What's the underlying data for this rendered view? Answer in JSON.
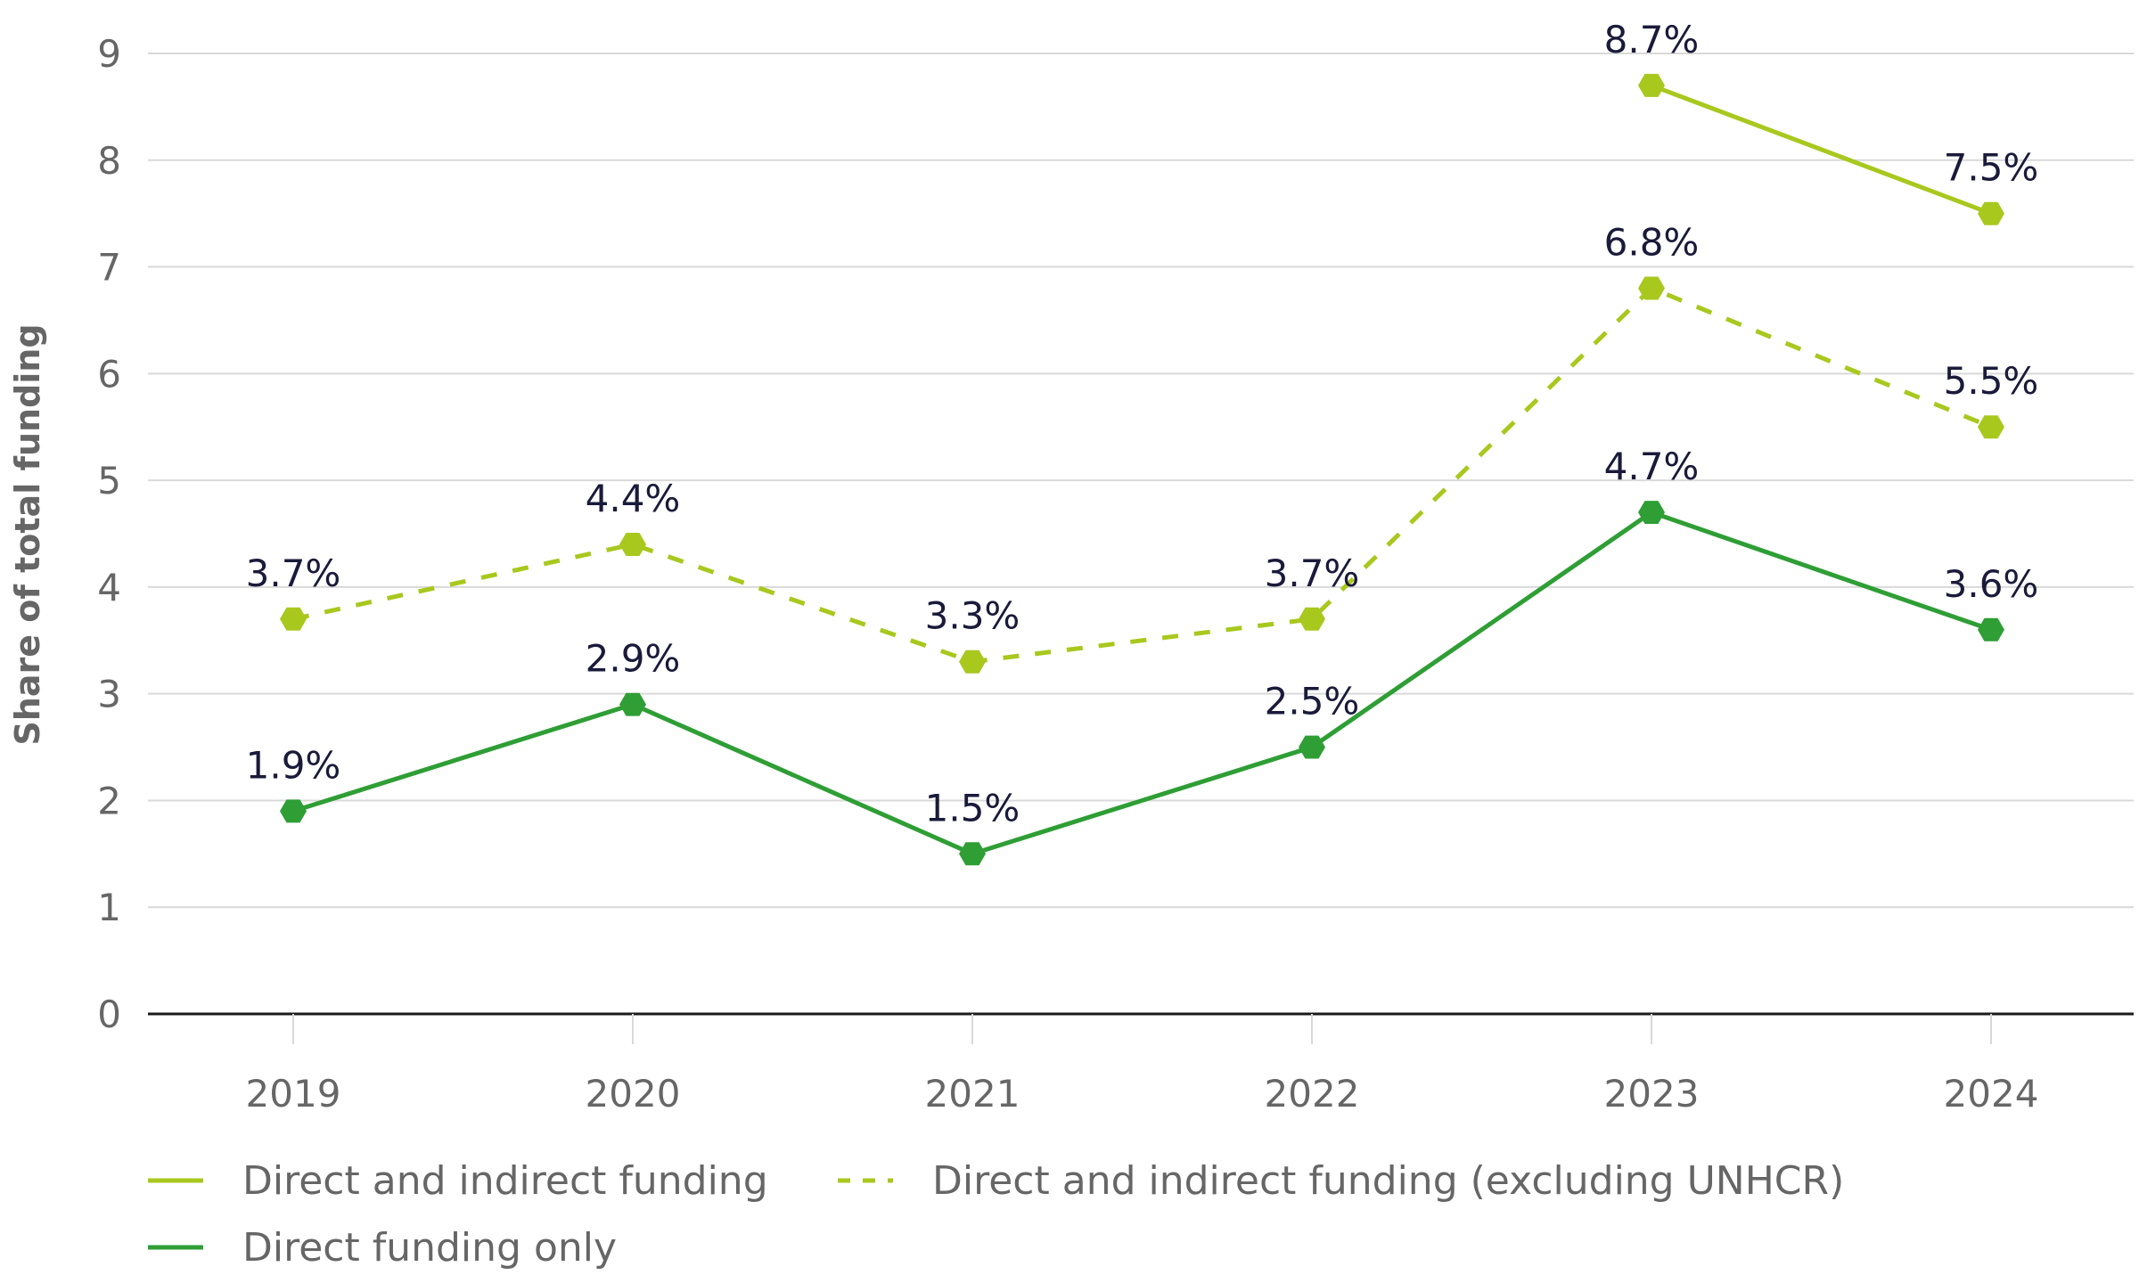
{
  "chart_data": {
    "type": "line",
    "title": "",
    "xlabel": "",
    "ylabel": "Share of total funding",
    "x": [
      "2019",
      "2020",
      "2021",
      "2022",
      "2023",
      "2024"
    ],
    "ylim": [
      0,
      9
    ],
    "yticks": [
      "0",
      "1",
      "2",
      "3",
      "4",
      "5",
      "6",
      "7",
      "8",
      "9"
    ],
    "grid": true,
    "legend_position": "bottom",
    "series": [
      {
        "name": "Direct and indirect funding",
        "values": [
          null,
          null,
          null,
          null,
          8.7,
          7.5
        ],
        "labels": [
          "",
          "",
          "",
          "",
          "8.7%",
          "7.5%"
        ],
        "color": "#a8c81e",
        "dash": false
      },
      {
        "name": "Direct and indirect funding (excluding UNHCR)",
        "values": [
          3.7,
          4.4,
          3.3,
          3.7,
          6.8,
          5.5
        ],
        "labels": [
          "3.7%",
          "4.4%",
          "3.3%",
          "3.7%",
          "6.8%",
          "5.5%"
        ],
        "color": "#a8c81e",
        "dash": true
      },
      {
        "name": "Direct funding only",
        "values": [
          1.9,
          2.9,
          1.5,
          2.5,
          4.7,
          3.6
        ],
        "labels": [
          "1.9%",
          "2.9%",
          "1.5%",
          "2.5%",
          "4.7%",
          "3.6%"
        ],
        "color": "#2e9e35",
        "dash": false
      }
    ]
  }
}
